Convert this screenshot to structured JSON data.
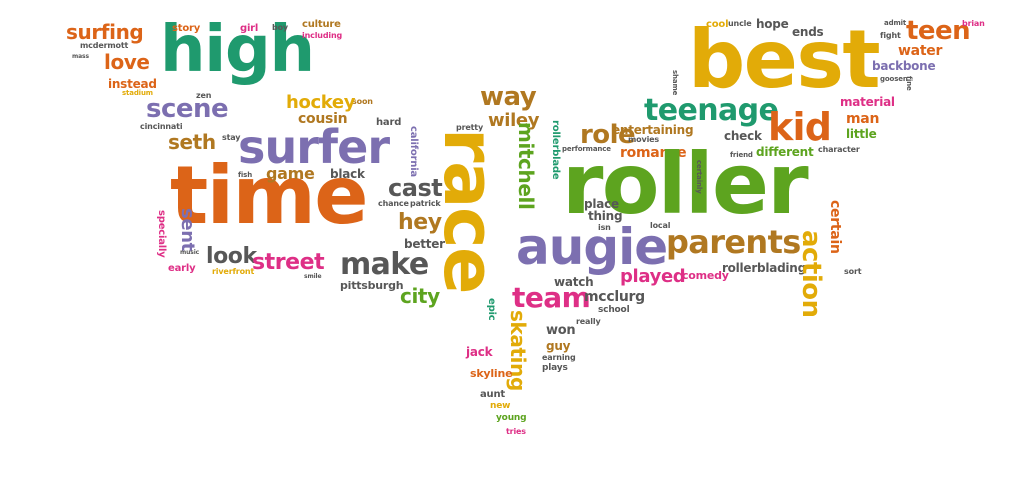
{
  "colors": {
    "orange": "#dc6418",
    "green": "#1f9a6e",
    "purple": "#7c6fb0",
    "gold": "#e2ab08",
    "lime": "#5da41f",
    "brown": "#b07821",
    "pink": "#de2f86",
    "gray": "#575757"
  },
  "words": [
    {
      "text": "high",
      "color": "green"
    },
    {
      "text": "surfing",
      "color": "orange"
    },
    {
      "text": "story",
      "color": "orange"
    },
    {
      "text": "girl",
      "color": "pink"
    },
    {
      "text": "boy",
      "color": "gray"
    },
    {
      "text": "culture",
      "color": "brown"
    },
    {
      "text": "including",
      "color": "pink"
    },
    {
      "text": "mcdermott",
      "color": "gray"
    },
    {
      "text": "mass",
      "color": "gray"
    },
    {
      "text": "love",
      "color": "orange"
    },
    {
      "text": "instead",
      "color": "orange"
    },
    {
      "text": "stadium",
      "color": "gold"
    },
    {
      "text": "zen",
      "color": "gray"
    },
    {
      "text": "scene",
      "color": "purple"
    },
    {
      "text": "soon",
      "color": "brown"
    },
    {
      "text": "hockey",
      "color": "gold"
    },
    {
      "text": "cousin",
      "color": "brown"
    },
    {
      "text": "cincinnati",
      "color": "gray"
    },
    {
      "text": "seth",
      "color": "brown"
    },
    {
      "text": "surfer",
      "color": "purple"
    },
    {
      "text": "hard",
      "color": "gray"
    },
    {
      "text": "stay",
      "color": "gray"
    },
    {
      "text": "time",
      "color": "orange"
    },
    {
      "text": "fish",
      "color": "gray"
    },
    {
      "text": "game",
      "color": "brown"
    },
    {
      "text": "black",
      "color": "gray"
    },
    {
      "text": "sent",
      "color": "purple"
    },
    {
      "text": "specially",
      "color": "pink"
    },
    {
      "text": "music",
      "color": "gray"
    },
    {
      "text": "early",
      "color": "pink"
    },
    {
      "text": "look",
      "color": "gray"
    },
    {
      "text": "street",
      "color": "pink"
    },
    {
      "text": "riverfront",
      "color": "gold"
    },
    {
      "text": "smile",
      "color": "gray"
    },
    {
      "text": "make",
      "color": "gray"
    },
    {
      "text": "cast",
      "color": "gray"
    },
    {
      "text": "chance",
      "color": "gray"
    },
    {
      "text": "california",
      "color": "purple"
    },
    {
      "text": "patrick",
      "color": "gray"
    },
    {
      "text": "hey",
      "color": "brown"
    },
    {
      "text": "better",
      "color": "gray"
    },
    {
      "text": "pittsburgh",
      "color": "gray"
    },
    {
      "text": "city",
      "color": "lime"
    },
    {
      "text": "way",
      "color": "brown"
    },
    {
      "text": "wiley",
      "color": "brown"
    },
    {
      "text": "pretty",
      "color": "gray"
    },
    {
      "text": "race",
      "color": "gold"
    },
    {
      "text": "mitchell",
      "color": "lime"
    },
    {
      "text": "rollerblade",
      "color": "green"
    },
    {
      "text": "epic",
      "color": "green"
    },
    {
      "text": "team",
      "color": "pink"
    },
    {
      "text": "skating",
      "color": "gold"
    },
    {
      "text": "jack",
      "color": "pink"
    },
    {
      "text": "skyline",
      "color": "orange"
    },
    {
      "text": "aunt",
      "color": "gray"
    },
    {
      "text": "new",
      "color": "gold"
    },
    {
      "text": "young",
      "color": "lime"
    },
    {
      "text": "tries",
      "color": "pink"
    },
    {
      "text": "guy",
      "color": "brown"
    },
    {
      "text": "earning",
      "color": "gray"
    },
    {
      "text": "plays",
      "color": "gray"
    },
    {
      "text": "won",
      "color": "gray"
    },
    {
      "text": "watch",
      "color": "gray"
    },
    {
      "text": "mcclurg",
      "color": "gray"
    },
    {
      "text": "school",
      "color": "gray"
    },
    {
      "text": "really",
      "color": "gray"
    },
    {
      "text": "augie",
      "color": "purple"
    },
    {
      "text": "played",
      "color": "pink"
    },
    {
      "text": "role",
      "color": "brown"
    },
    {
      "text": "performance",
      "color": "gray"
    },
    {
      "text": "teenage",
      "color": "green"
    },
    {
      "text": "entertaining",
      "color": "brown"
    },
    {
      "text": "movies",
      "color": "gray"
    },
    {
      "text": "romance",
      "color": "orange"
    },
    {
      "text": "roller",
      "color": "lime"
    },
    {
      "text": "place",
      "color": "gray"
    },
    {
      "text": "thing",
      "color": "gray"
    },
    {
      "text": "isn",
      "color": "gray"
    },
    {
      "text": "local",
      "color": "gray"
    },
    {
      "text": "parents",
      "color": "brown"
    },
    {
      "text": "comedy",
      "color": "pink"
    },
    {
      "text": "rollerblading",
      "color": "gray"
    },
    {
      "text": "action",
      "color": "gold"
    },
    {
      "text": "certain",
      "color": "orange"
    },
    {
      "text": "sort",
      "color": "gray"
    },
    {
      "text": "best",
      "color": "gold"
    },
    {
      "text": "cool",
      "color": "gold"
    },
    {
      "text": "uncle",
      "color": "gray"
    },
    {
      "text": "hope",
      "color": "gray"
    },
    {
      "text": "ends",
      "color": "gray"
    },
    {
      "text": "teen",
      "color": "orange"
    },
    {
      "text": "brian",
      "color": "pink"
    },
    {
      "text": "admit",
      "color": "gray"
    },
    {
      "text": "fight",
      "color": "gray"
    },
    {
      "text": "water",
      "color": "orange"
    },
    {
      "text": "backbone",
      "color": "purple"
    },
    {
      "text": "goosen",
      "color": "gray"
    },
    {
      "text": "shame",
      "color": "gray"
    },
    {
      "text": "fine",
      "color": "gray"
    },
    {
      "text": "kid",
      "color": "orange"
    },
    {
      "text": "material",
      "color": "pink"
    },
    {
      "text": "man",
      "color": "orange"
    },
    {
      "text": "little",
      "color": "lime"
    },
    {
      "text": "character",
      "color": "gray"
    },
    {
      "text": "check",
      "color": "gray"
    },
    {
      "text": "different",
      "color": "lime"
    },
    {
      "text": "friend",
      "color": "gray"
    },
    {
      "text": "certainly",
      "color": "gray"
    }
  ]
}
